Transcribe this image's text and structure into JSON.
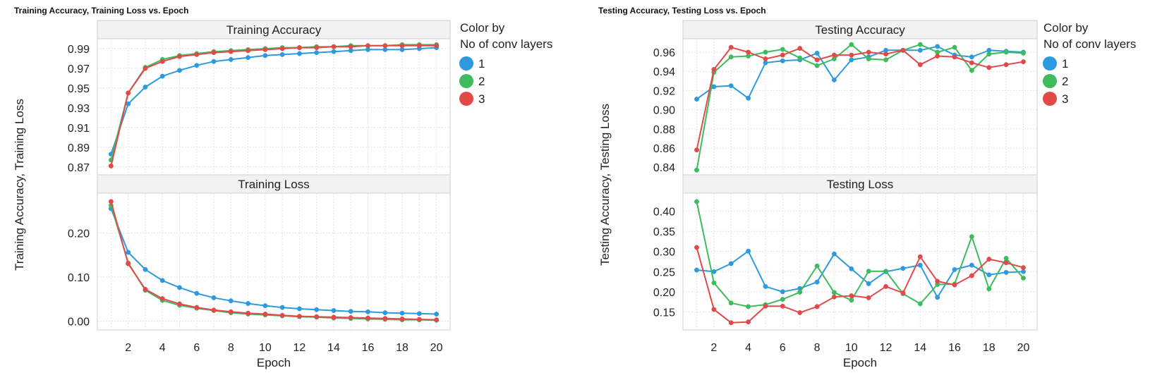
{
  "chart_data": [
    {
      "type": "line",
      "title": "Training Accuracy, Training Loss vs. Epoch",
      "ylabel": "Training Accuracy, Training Loss",
      "xlabel": "Epoch",
      "x": [
        1,
        2,
        3,
        4,
        5,
        6,
        7,
        8,
        9,
        10,
        11,
        12,
        13,
        14,
        15,
        16,
        17,
        18,
        19,
        20
      ],
      "xticks": [
        2,
        4,
        6,
        8,
        10,
        12,
        14,
        16,
        18,
        20
      ],
      "xlim": [
        0.2,
        20.8
      ],
      "legend": {
        "title_line1": "Color by",
        "title_line2": "No of conv layers",
        "position": "right"
      },
      "panels": [
        {
          "title": "Training Accuracy",
          "ylim": [
            0.862,
            1.0
          ],
          "yticks": [
            0.87,
            0.89,
            0.91,
            0.93,
            0.95,
            0.97,
            0.99
          ],
          "ytick_labels": [
            "0.87",
            "0.89",
            "0.91",
            "0.93",
            "0.95",
            "0.97",
            "0.99"
          ],
          "series": [
            {
              "name": "1",
              "color": "#2d9ae0",
              "values": [
                0.883,
                0.934,
                0.951,
                0.962,
                0.968,
                0.973,
                0.977,
                0.979,
                0.981,
                0.983,
                0.984,
                0.985,
                0.986,
                0.987,
                0.988,
                0.989,
                0.989,
                0.989,
                0.99,
                0.991
              ]
            },
            {
              "name": "2",
              "color": "#3dbb5d",
              "values": [
                0.877,
                0.945,
                0.971,
                0.979,
                0.983,
                0.985,
                0.987,
                0.988,
                0.989,
                0.99,
                0.991,
                0.991,
                0.992,
                0.992,
                0.993,
                0.993,
                0.993,
                0.994,
                0.994,
                0.994
              ]
            },
            {
              "name": "3",
              "color": "#e24a4a",
              "values": [
                0.871,
                0.945,
                0.97,
                0.977,
                0.982,
                0.984,
                0.986,
                0.987,
                0.988,
                0.989,
                0.99,
                0.991,
                0.991,
                0.992,
                0.992,
                0.993,
                0.993,
                0.993,
                0.993,
                0.993
              ]
            }
          ]
        },
        {
          "title": "Training Loss",
          "ylim": [
            -0.02,
            0.29
          ],
          "yticks": [
            0.0,
            0.1,
            0.2
          ],
          "ytick_labels": [
            "0.00",
            "0.10",
            "0.20"
          ],
          "series": [
            {
              "name": "1",
              "color": "#2d9ae0",
              "values": [
                0.255,
                0.156,
                0.117,
                0.092,
                0.076,
                0.063,
                0.053,
                0.046,
                0.04,
                0.035,
                0.031,
                0.028,
                0.026,
                0.024,
                0.022,
                0.021,
                0.019,
                0.018,
                0.017,
                0.016
              ]
            },
            {
              "name": "2",
              "color": "#3dbb5d",
              "values": [
                0.262,
                0.132,
                0.07,
                0.047,
                0.036,
                0.029,
                0.024,
                0.019,
                0.016,
                0.014,
                0.012,
                0.01,
                0.009,
                0.007,
                0.006,
                0.005,
                0.004,
                0.003,
                0.003,
                0.002
              ]
            },
            {
              "name": "3",
              "color": "#e24a4a",
              "values": [
                0.271,
                0.13,
                0.072,
                0.051,
                0.039,
                0.031,
                0.025,
                0.021,
                0.018,
                0.016,
                0.013,
                0.011,
                0.01,
                0.009,
                0.008,
                0.007,
                0.006,
                0.005,
                0.004,
                0.003
              ]
            }
          ]
        }
      ]
    },
    {
      "type": "line",
      "title": "Testing Accuracy, Testing Loss vs. Epoch",
      "ylabel": "Testing Accuracy, Testing Loss",
      "xlabel": "Epoch",
      "x": [
        1,
        2,
        3,
        4,
        5,
        6,
        7,
        8,
        9,
        10,
        11,
        12,
        13,
        14,
        15,
        16,
        17,
        18,
        19,
        20
      ],
      "xticks": [
        2,
        4,
        6,
        8,
        10,
        12,
        14,
        16,
        18,
        20
      ],
      "xlim": [
        0.2,
        20.8
      ],
      "legend": {
        "title_line1": "Color by",
        "title_line2": "No of conv layers",
        "position": "right"
      },
      "panels": [
        {
          "title": "Testing Accuracy",
          "ylim": [
            0.832,
            0.974
          ],
          "yticks": [
            0.84,
            0.86,
            0.88,
            0.9,
            0.92,
            0.94,
            0.96
          ],
          "ytick_labels": [
            "0.84",
            "0.86",
            "0.88",
            "0.90",
            "0.92",
            "0.94",
            "0.96"
          ],
          "series": [
            {
              "name": "1",
              "color": "#2d9ae0",
              "values": [
                0.911,
                0.924,
                0.925,
                0.912,
                0.949,
                0.951,
                0.952,
                0.959,
                0.931,
                0.952,
                0.955,
                0.962,
                0.962,
                0.962,
                0.966,
                0.957,
                0.955,
                0.962,
                0.961,
                0.96
              ]
            },
            {
              "name": "2",
              "color": "#3dbb5d",
              "values": [
                0.837,
                0.939,
                0.955,
                0.956,
                0.96,
                0.963,
                0.954,
                0.946,
                0.953,
                0.968,
                0.953,
                0.952,
                0.962,
                0.968,
                0.96,
                0.965,
                0.941,
                0.958,
                0.96,
                0.959
              ]
            },
            {
              "name": "3",
              "color": "#e24a4a",
              "values": [
                0.858,
                0.942,
                0.965,
                0.96,
                0.953,
                0.957,
                0.964,
                0.952,
                0.957,
                0.957,
                0.96,
                0.958,
                0.962,
                0.947,
                0.956,
                0.955,
                0.949,
                0.944,
                0.947,
                0.95
              ]
            }
          ]
        },
        {
          "title": "Testing Loss",
          "ylim": [
            0.105,
            0.445
          ],
          "yticks": [
            0.15,
            0.2,
            0.25,
            0.3,
            0.35,
            0.4
          ],
          "ytick_labels": [
            "0.15",
            "0.20",
            "0.25",
            "0.30",
            "0.35",
            "0.40"
          ],
          "series": [
            {
              "name": "1",
              "color": "#2d9ae0",
              "values": [
                0.254,
                0.25,
                0.27,
                0.301,
                0.213,
                0.2,
                0.208,
                0.224,
                0.294,
                0.257,
                0.22,
                0.25,
                0.258,
                0.266,
                0.186,
                0.255,
                0.266,
                0.242,
                0.248,
                0.25
              ]
            },
            {
              "name": "2",
              "color": "#3dbb5d",
              "values": [
                0.424,
                0.222,
                0.172,
                0.163,
                0.168,
                0.181,
                0.199,
                0.264,
                0.198,
                0.179,
                0.251,
                0.251,
                0.195,
                0.17,
                0.218,
                0.219,
                0.337,
                0.207,
                0.283,
                0.234
              ]
            },
            {
              "name": "3",
              "color": "#e24a4a",
              "values": [
                0.31,
                0.156,
                0.123,
                0.125,
                0.164,
                0.164,
                0.148,
                0.163,
                0.187,
                0.19,
                0.185,
                0.213,
                0.197,
                0.287,
                0.226,
                0.217,
                0.24,
                0.281,
                0.272,
                0.26
              ]
            }
          ]
        }
      ]
    }
  ]
}
